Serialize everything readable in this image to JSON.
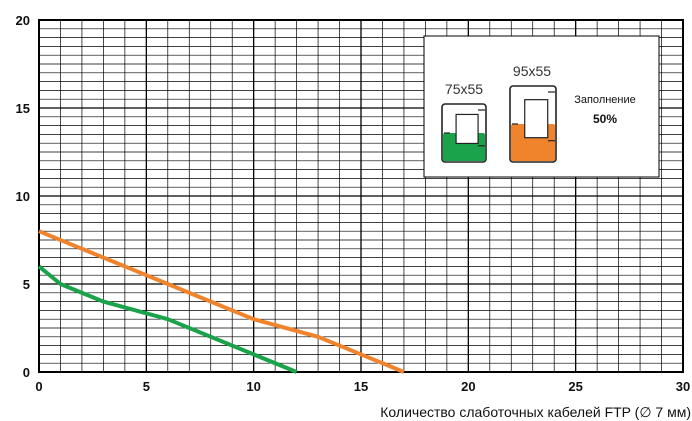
{
  "chart_data": {
    "type": "line",
    "xlabel": "Количество слаботочных кабелей FTP (∅ 7 мм)",
    "ylabel": "",
    "xlim": [
      0,
      30
    ],
    "ylim": [
      0,
      20
    ],
    "x_ticks": [
      "0",
      "5",
      "10",
      "15",
      "20",
      "25",
      "30"
    ],
    "y_ticks": [
      "0",
      "5",
      "10",
      "15",
      "20"
    ],
    "grid": true,
    "series": [
      {
        "name": "75x55",
        "color": "#1aa34a",
        "points": [
          [
            0,
            6
          ],
          [
            1,
            5
          ],
          [
            3,
            4
          ],
          [
            6,
            3
          ],
          [
            10,
            1
          ],
          [
            12,
            0
          ]
        ]
      },
      {
        "name": "95x55",
        "color": "#f0842c",
        "points": [
          [
            0,
            8
          ],
          [
            6,
            5
          ],
          [
            10,
            3
          ],
          [
            13,
            2
          ],
          [
            17,
            0
          ]
        ]
      }
    ],
    "legend": {
      "placement": "top-right",
      "fill_label": "Заполнение",
      "fill_value": "50%"
    }
  }
}
